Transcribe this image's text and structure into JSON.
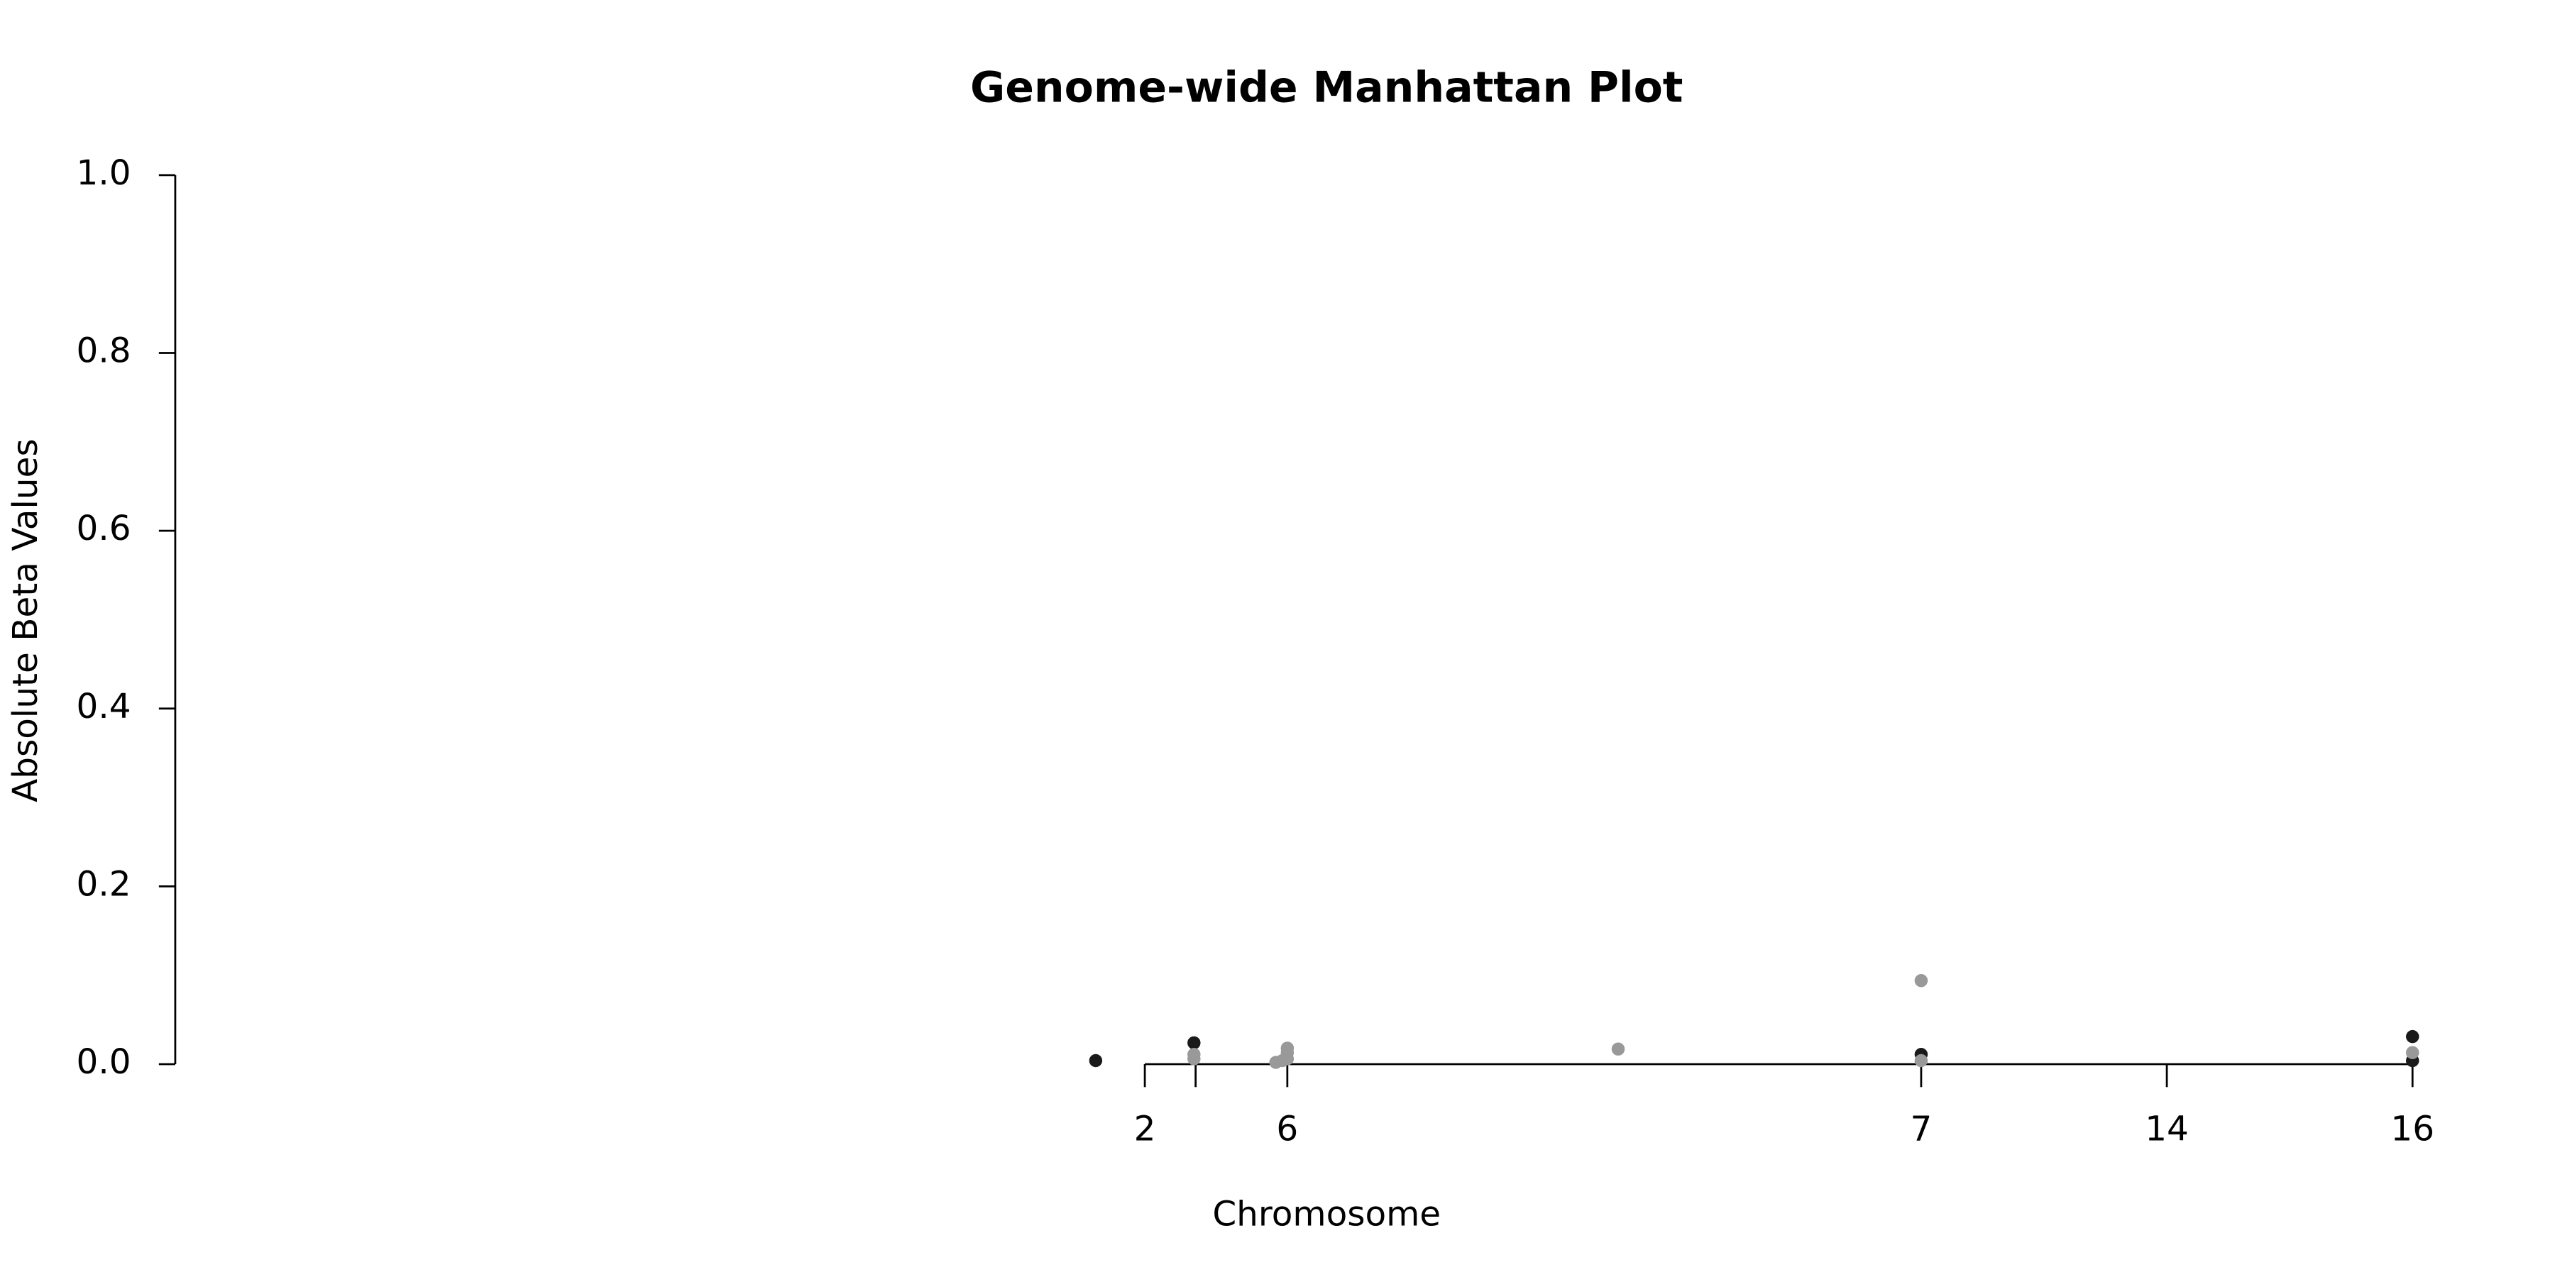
{
  "chart_data": {
    "type": "scatter",
    "title": "Genome-wide Manhattan Plot",
    "xlabel": "Chromosome",
    "ylabel": "Absolute Beta Values",
    "xlim": [
      0,
      1410
    ],
    "ylim": [
      0,
      1.0
    ],
    "xticks": [
      {
        "value": 592,
        "label": "2"
      },
      {
        "value": 623,
        "label": null
      },
      {
        "value": 679,
        "label": "6"
      },
      {
        "value": 1066,
        "label": "7"
      },
      {
        "value": 1216,
        "label": "14"
      },
      {
        "value": 1366,
        "label": "16"
      }
    ],
    "yticks": [
      {
        "value": 0,
        "label": "0.0"
      },
      {
        "value": 0.2,
        "label": "0.2"
      },
      {
        "value": 0.4,
        "label": "0.4"
      },
      {
        "value": 0.6,
        "label": "0.6"
      },
      {
        "value": 0.8,
        "label": "0.8"
      },
      {
        "value": 1.0,
        "label": "1.0"
      }
    ],
    "series": [
      {
        "color": "#1a1a1a",
        "x": [
          562,
          622,
          1066,
          1366,
          1366
        ],
        "values": [
          0.004,
          0.024,
          0.011,
          0.031,
          0.004
        ]
      },
      {
        "color": "#999999",
        "x": [
          622,
          622,
          672,
          676,
          679,
          679,
          679,
          881,
          1066,
          1066,
          1366
        ],
        "values": [
          0.011,
          0.006,
          0.002,
          0.004,
          0.018,
          0.013,
          0.006,
          0.017,
          0.094,
          0.004,
          0.013
        ]
      }
    ]
  }
}
